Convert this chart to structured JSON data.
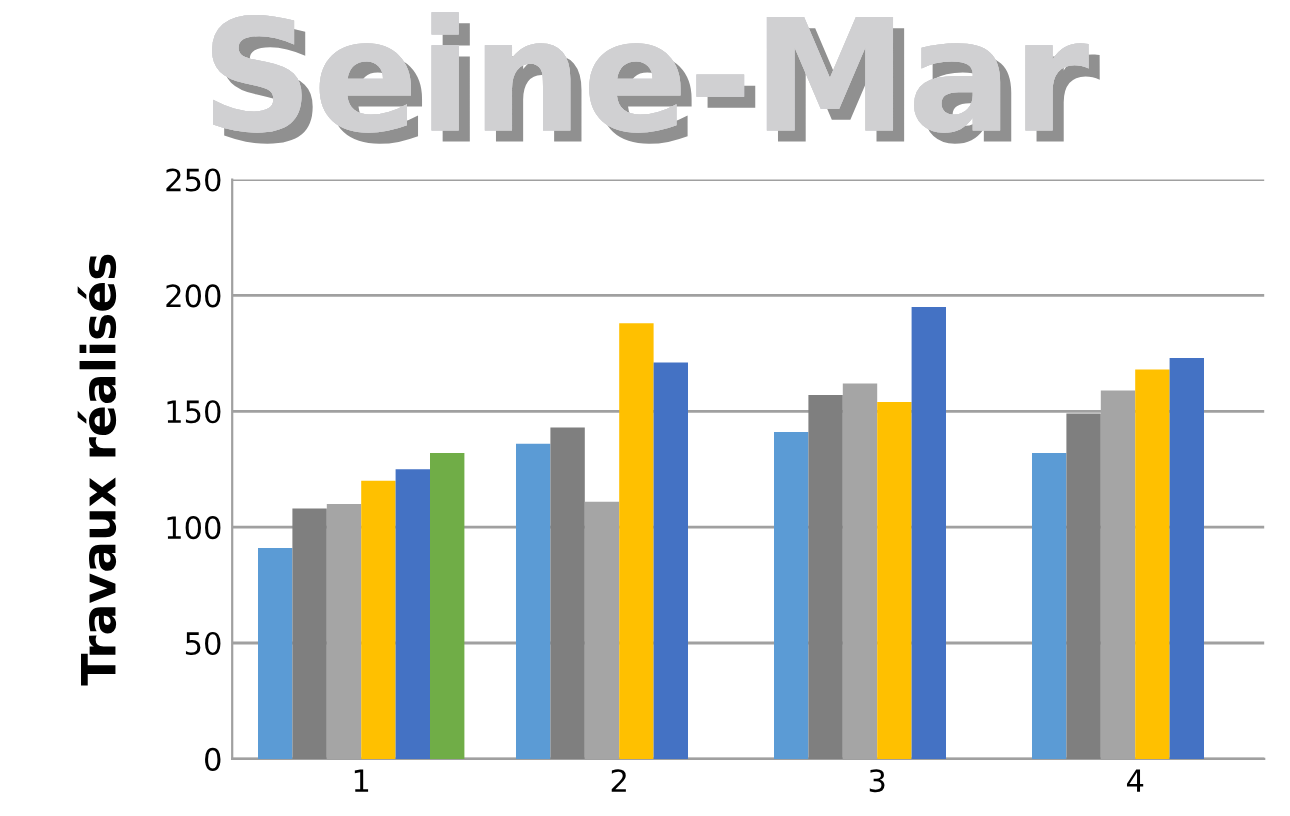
{
  "chart_data": {
    "type": "bar",
    "title": "Seine-Mar",
    "ylabel": "Travaux réalisés",
    "categories": [
      "1",
      "2",
      "3",
      "4"
    ],
    "series": [
      {
        "color": "#5b9bd5",
        "values": [
          91,
          136,
          141,
          132
        ]
      },
      {
        "color": "#7f7f7f",
        "values": [
          108,
          143,
          157,
          149
        ]
      },
      {
        "color": "#a5a5a5",
        "values": [
          110,
          111,
          162,
          159
        ]
      },
      {
        "color": "#ffc000",
        "values": [
          120,
          188,
          154,
          168
        ]
      },
      {
        "color": "#4472c4",
        "values": [
          125,
          171,
          195,
          173
        ]
      },
      {
        "color": "#70ad47",
        "values": [
          132,
          null,
          null,
          null
        ]
      }
    ],
    "ylim": [
      0,
      250
    ],
    "yticks": [
      0,
      50,
      100,
      150,
      200,
      250
    ],
    "grid": "y"
  }
}
